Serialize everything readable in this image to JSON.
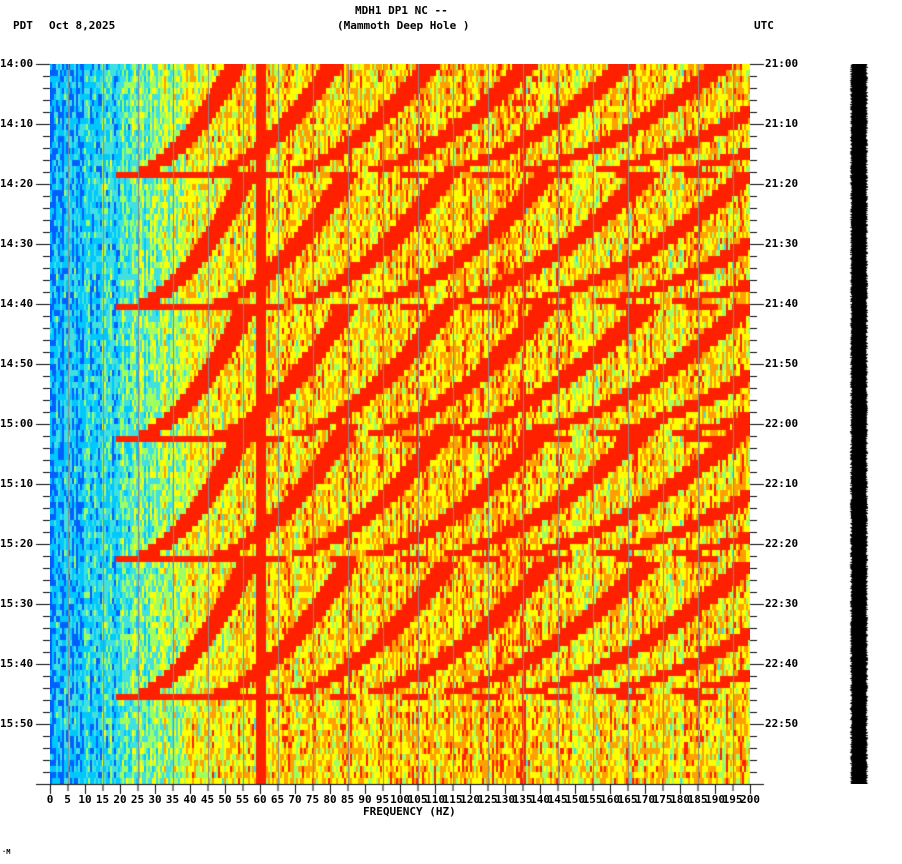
{
  "header": {
    "station": "MDH1 DP1 NC --",
    "location": "(Mammoth Deep Hole )",
    "left_tz": "PDT",
    "date": "Oct 8,2025",
    "right_tz": "UTC"
  },
  "chart_data": {
    "type": "heatmap",
    "title": "MDH1 DP1 NC -- (Mammoth Deep Hole )",
    "xlabel": "FREQUENCY (HZ)",
    "ylabel_left": "PDT",
    "ylabel_right": "UTC",
    "xlim": [
      0,
      200
    ],
    "x_ticks": [
      0,
      5,
      10,
      15,
      20,
      25,
      30,
      35,
      40,
      45,
      50,
      55,
      60,
      65,
      70,
      75,
      80,
      85,
      90,
      95,
      100,
      105,
      110,
      115,
      120,
      125,
      130,
      135,
      140,
      145,
      150,
      155,
      160,
      165,
      170,
      175,
      180,
      185,
      190,
      195,
      200
    ],
    "y_ticks_left": [
      "14:00",
      "14:10",
      "14:20",
      "14:30",
      "14:40",
      "14:50",
      "15:00",
      "15:10",
      "15:20",
      "15:30",
      "15:40",
      "15:50"
    ],
    "y_ticks_right": [
      "21:00",
      "21:10",
      "21:20",
      "21:30",
      "21:40",
      "21:50",
      "22:00",
      "22:10",
      "22:20",
      "22:30",
      "22:40",
      "22:50"
    ],
    "time_range_minutes": 120,
    "colormap": [
      "#0060ff",
      "#00c8ff",
      "#40e0e0",
      "#a0ff60",
      "#ffff00",
      "#ffa000",
      "#ff2000",
      "#800000"
    ],
    "features": {
      "low_freq_band_hz": [
        0,
        20
      ],
      "low_freq_level": "blue-cyan (low power)",
      "persistent_line_hz": 60,
      "persistent_line_2_hz": 135,
      "curved_chirp_families": "repeating ~20-minute cycle of curved high-power harmonic sweeps starting ~22 Hz, 42 Hz, 62 Hz ... ending at 14:18, 14:40, 15:02, 15:22, 15:45",
      "chirp_cycle_end_minutes": [
        18,
        40,
        62,
        82,
        105
      ],
      "high_freq_level": "orange-red (moderate power)"
    },
    "grid_lines_hz": [
      5,
      15,
      25,
      35,
      45,
      55,
      65,
      75,
      85,
      95,
      105,
      115,
      125,
      135,
      145,
      155,
      165,
      175,
      185,
      195
    ]
  },
  "footer": {
    "mark": "·M"
  }
}
